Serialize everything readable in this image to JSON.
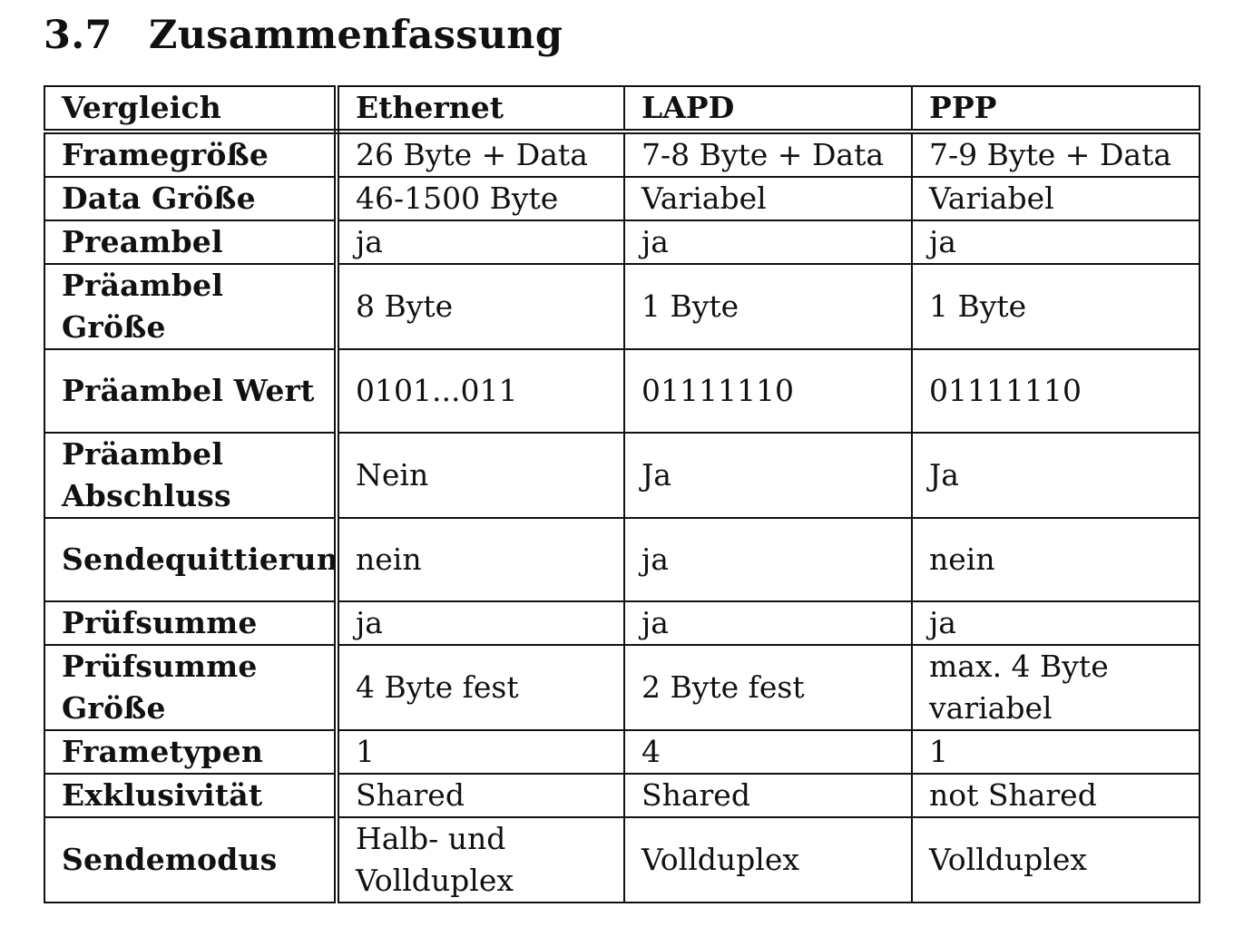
{
  "section": {
    "number": "3.7",
    "title": "Zusammenfassung"
  },
  "table": {
    "header": [
      "Vergleich",
      "Ethernet",
      "LAPD",
      "PPP"
    ],
    "rows": [
      {
        "label": "Framegröße",
        "values": [
          "26 Byte + Data",
          "7-8 Byte + Data",
          "7-9 Byte + Data"
        ]
      },
      {
        "label": "Data Größe",
        "values": [
          "46-1500 Byte",
          "Variabel",
          "Variabel"
        ]
      },
      {
        "label": "Preambel",
        "values": [
          "ja",
          "ja",
          "ja"
        ]
      },
      {
        "label": "Präambel Größe",
        "values": [
          "8 Byte",
          "1 Byte",
          "1 Byte"
        ]
      },
      {
        "label": "Präambel Wert",
        "values": [
          "0101...011",
          "01111110",
          "01111110"
        ]
      },
      {
        "label": "Präambel Abschluss",
        "values": [
          "Nein",
          "Ja",
          "Ja"
        ]
      },
      {
        "label": "Sendequittierung",
        "values": [
          "nein",
          "ja",
          "nein"
        ]
      },
      {
        "label": "Prüfsumme",
        "values": [
          "ja",
          "ja",
          "ja"
        ]
      },
      {
        "label": "Prüfsumme Größe",
        "values": [
          "4 Byte fest",
          "2 Byte fest",
          "max. 4 Byte variabel"
        ]
      },
      {
        "label": "Frametypen",
        "values": [
          "1",
          "4",
          "1"
        ]
      },
      {
        "label": "Exklusivität",
        "values": [
          "Shared",
          "Shared",
          "not Shared"
        ]
      },
      {
        "label": "Sendemodus",
        "values": [
          "Halb- und Vollduplex",
          "Vollduplex",
          "Vollduplex"
        ]
      }
    ]
  }
}
